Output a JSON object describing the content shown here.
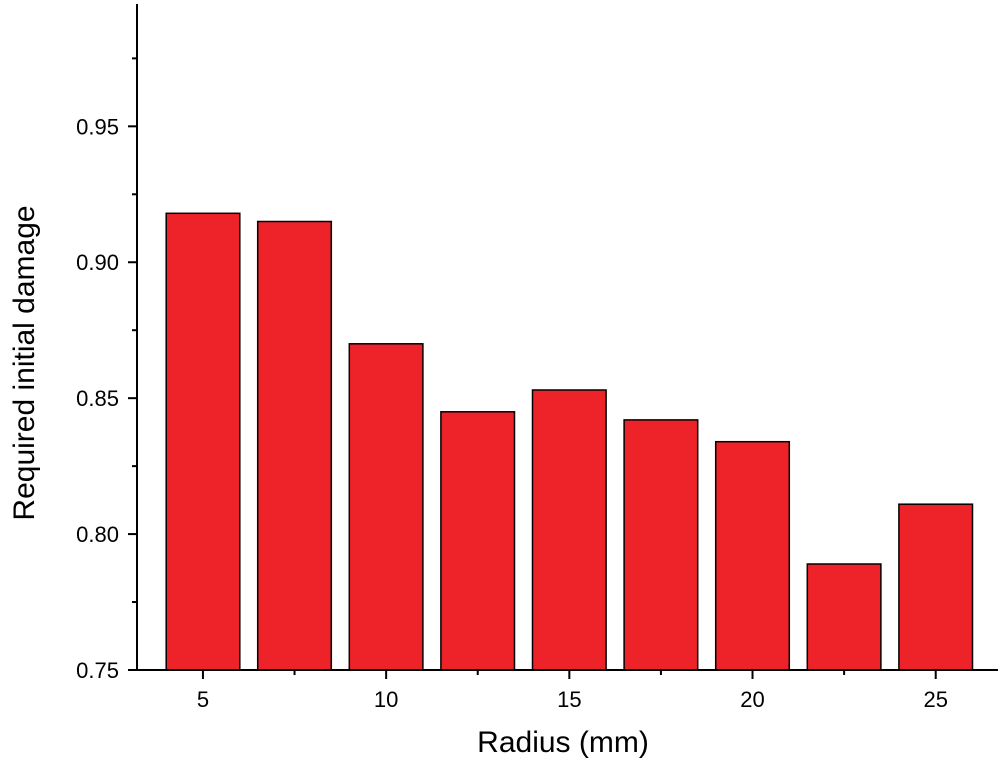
{
  "chart_data": {
    "type": "bar",
    "title": "",
    "xlabel": "Radius (mm)",
    "ylabel": "Required initial damage",
    "x": [
      5,
      7.5,
      10,
      12.5,
      15,
      17.5,
      20,
      22.5,
      25
    ],
    "values": [
      0.918,
      0.915,
      0.87,
      0.845,
      0.853,
      0.842,
      0.834,
      0.789,
      0.811
    ],
    "xticks": [
      5,
      10,
      15,
      20,
      25
    ],
    "xtick_labels": [
      "5",
      "10",
      "15",
      "20",
      "25"
    ],
    "yticks": [
      0.75,
      0.8,
      0.85,
      0.9,
      0.95
    ],
    "ytick_labels": [
      "0.75",
      "0.80",
      "0.85",
      "0.90",
      "0.95"
    ],
    "xlim": [
      3.2,
      26.7
    ],
    "ylim": [
      0.75,
      0.995
    ],
    "bar_color": "#ee2229",
    "grid": false,
    "legend": "none"
  }
}
